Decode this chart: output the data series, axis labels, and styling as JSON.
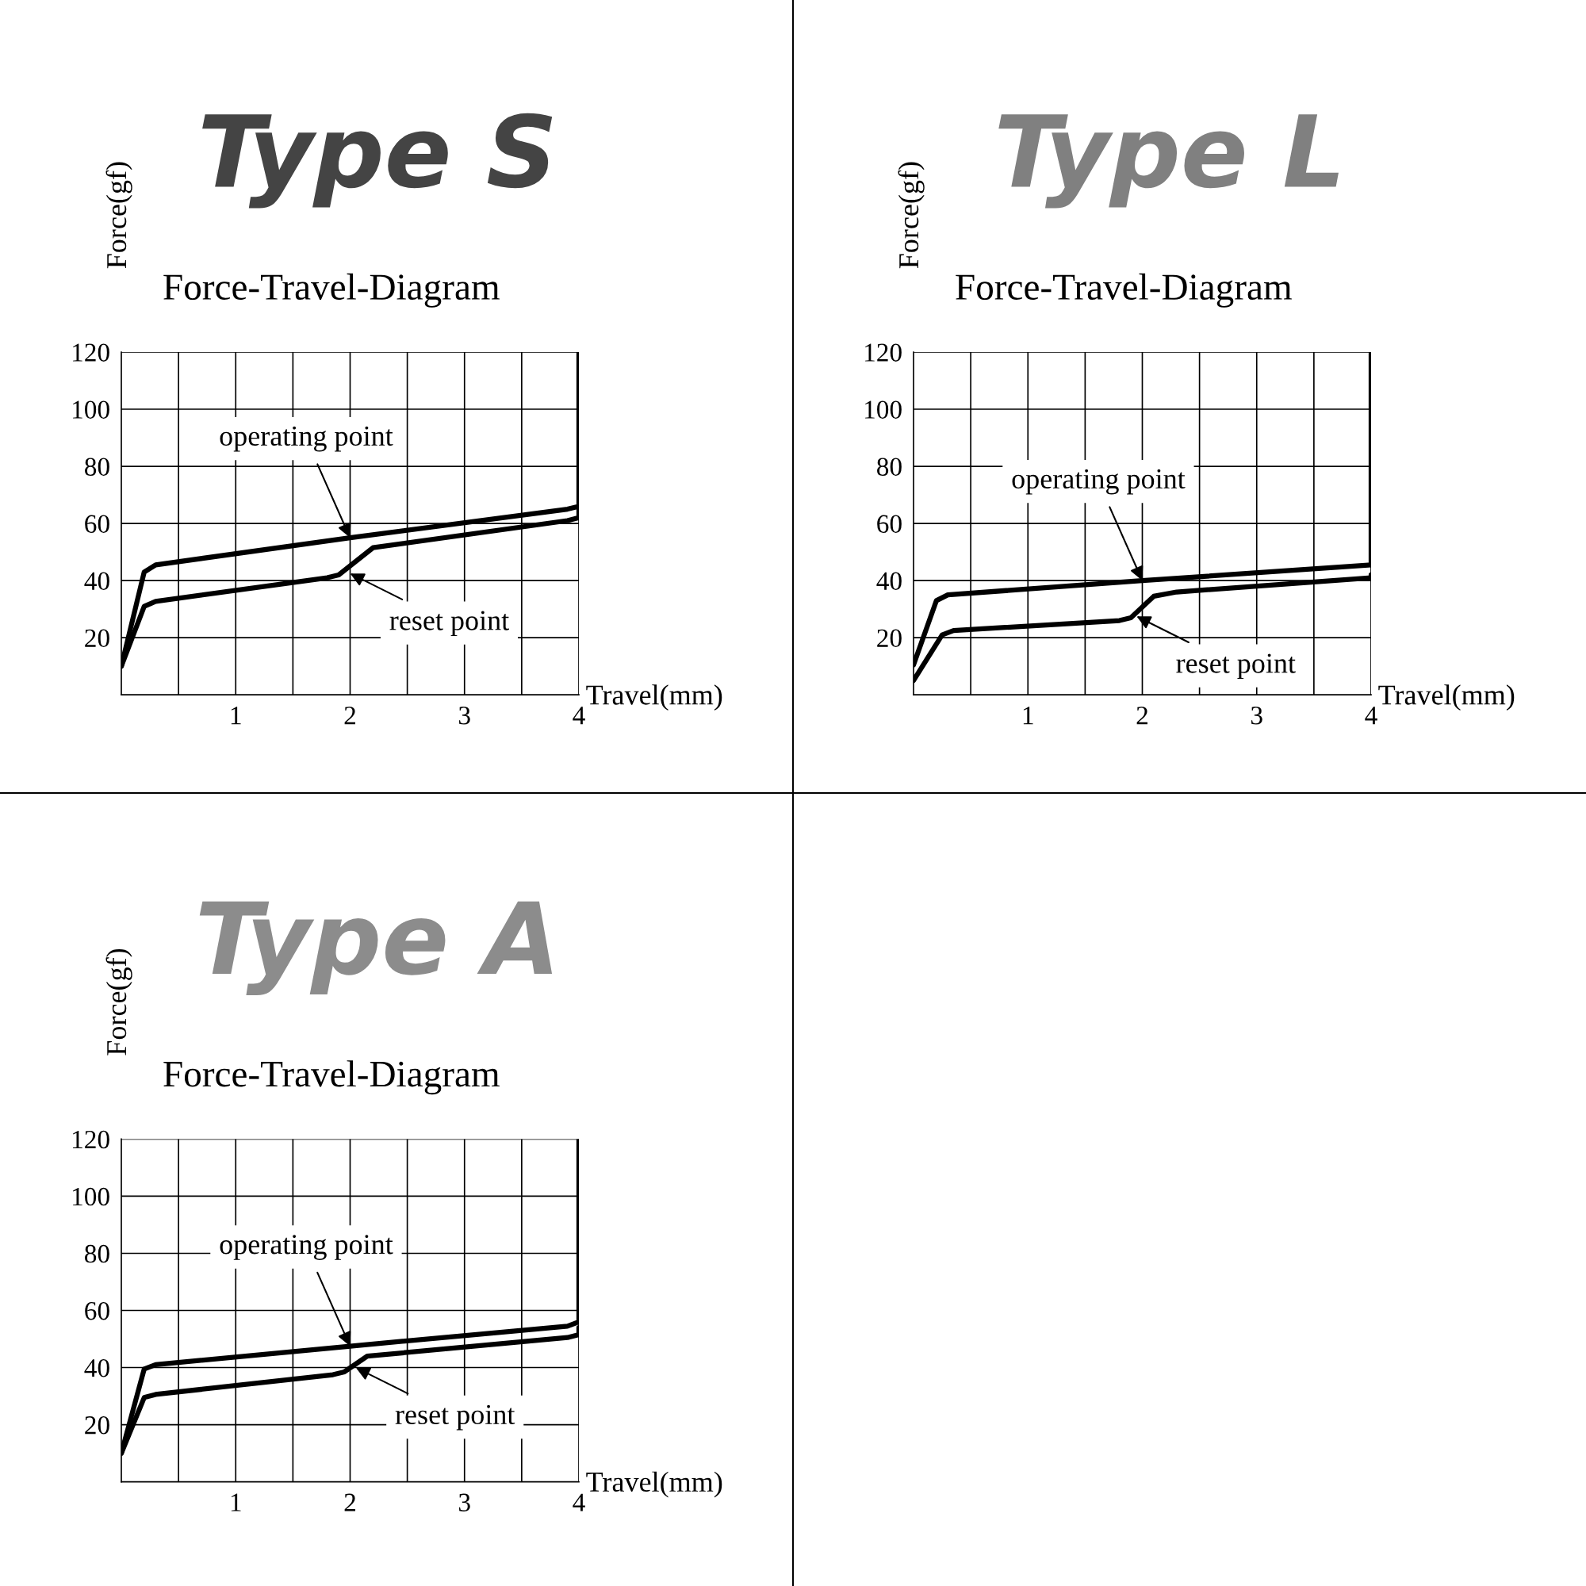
{
  "chart_data": [
    {
      "type": "line",
      "title": "Type S",
      "subtitle": "Force-Travel-Diagram",
      "xlabel": "Travel(mm)",
      "ylabel": "Force(gf)",
      "xlim": [
        0,
        4
      ],
      "ylim": [
        0,
        120
      ],
      "xticks": [
        {
          "value": 0.5,
          "label": null
        },
        1,
        {
          "value": 1.5,
          "label": null
        },
        2,
        {
          "value": 2.5,
          "label": null
        },
        3,
        {
          "value": 3.5,
          "label": null
        },
        4
      ],
      "yticks": [
        20,
        40,
        60,
        80,
        100,
        120
      ],
      "grid": true,
      "series": [
        {
          "color": "#000000",
          "x": [
            0,
            0.2,
            0.3,
            2,
            3.9,
            4,
            4
          ],
          "values": [
            10,
            43,
            45.5,
            55,
            65,
            66,
            120
          ]
        },
        {
          "color": "#000000",
          "x": [
            0,
            0.2,
            0.3,
            1.8,
            1.9,
            2.2,
            3.9,
            4,
            4
          ],
          "values": [
            10,
            31,
            32.7,
            41,
            42,
            51.5,
            61,
            62,
            66
          ]
        }
      ],
      "annotations": [
        {
          "text": "operating point",
          "x": 2,
          "y": 55
        },
        {
          "text": "reset point",
          "x": 2,
          "y": 42.5
        }
      ]
    },
    {
      "type": "line",
      "title": "Type L",
      "subtitle": "Force-Travel-Diagram",
      "xlabel": "Travel(mm)",
      "ylabel": "Force(gf)",
      "xlim": [
        0,
        4
      ],
      "ylim": [
        0,
        120
      ],
      "xticks": [
        {
          "value": 0.5,
          "label": null
        },
        1,
        {
          "value": 1.5,
          "label": null
        },
        2,
        {
          "value": 2.5,
          "label": null
        },
        3,
        {
          "value": 3.5,
          "label": null
        },
        4
      ],
      "yticks": [
        20,
        40,
        60,
        80,
        100,
        120
      ],
      "grid": true,
      "series": [
        {
          "color": "#000000",
          "x": [
            0,
            0.2,
            0.3,
            2,
            4,
            4
          ],
          "values": [
            10.5,
            33,
            35,
            40,
            45.5,
            120
          ]
        },
        {
          "color": "#000000",
          "x": [
            0,
            0.25,
            0.35,
            1.8,
            1.9,
            2.1,
            2.3,
            4,
            4
          ],
          "values": [
            5,
            21,
            22.5,
            26,
            27,
            34.5,
            36,
            41,
            42
          ]
        }
      ],
      "annotations": [
        {
          "text": "operating point",
          "x": 2,
          "y": 40
        },
        {
          "text": "reset point",
          "x": 1.95,
          "y": 27.5
        }
      ]
    },
    {
      "type": "line",
      "title": "Type A",
      "subtitle": "Force-Travel-Diagram",
      "xlabel": "Travel(mm)",
      "ylabel": "Force(gf)",
      "xlim": [
        0,
        4
      ],
      "ylim": [
        0,
        120
      ],
      "xticks": [
        {
          "value": 0.5,
          "label": null
        },
        1,
        {
          "value": 1.5,
          "label": null
        },
        2,
        {
          "value": 2.5,
          "label": null
        },
        3,
        {
          "value": 3.5,
          "label": null
        },
        4
      ],
      "yticks": [
        20,
        40,
        60,
        80,
        100,
        120
      ],
      "grid": true,
      "series": [
        {
          "color": "#000000",
          "x": [
            0,
            0.2,
            0.3,
            2,
            3.9,
            4,
            4
          ],
          "values": [
            10,
            39.5,
            41,
            47.5,
            54.5,
            56,
            120
          ]
        },
        {
          "color": "#000000",
          "x": [
            0,
            0.2,
            0.3,
            1.85,
            1.95,
            2.15,
            3.9,
            4,
            4
          ],
          "values": [
            10,
            29.5,
            30.6,
            37.5,
            38.5,
            44,
            50.5,
            51.5,
            54
          ]
        }
      ],
      "annotations": [
        {
          "text": "operating point",
          "x": 2,
          "y": 47.5
        },
        {
          "text": "reset point",
          "x": 2.05,
          "y": 40
        }
      ]
    }
  ]
}
